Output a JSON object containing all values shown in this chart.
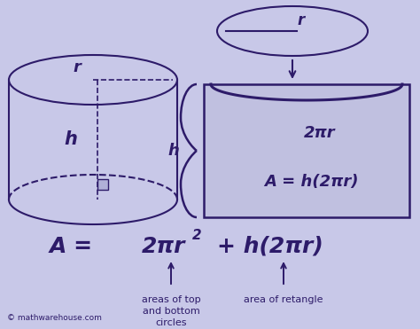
{
  "bg_color": "#c8c8e8",
  "dark_purple": "#2d1b69",
  "rect_color": "#c0c0e0",
  "label_left": "areas of top\nand bottom\ncircles",
  "label_right": "area of retangle",
  "watermark": "© mathwarehouse.com",
  "rect_label_top": "2πr",
  "rect_label_side": "A = h(2πr)",
  "h_brace": "h",
  "r_top": "r",
  "r_cyl": "r",
  "h_cyl": "h"
}
